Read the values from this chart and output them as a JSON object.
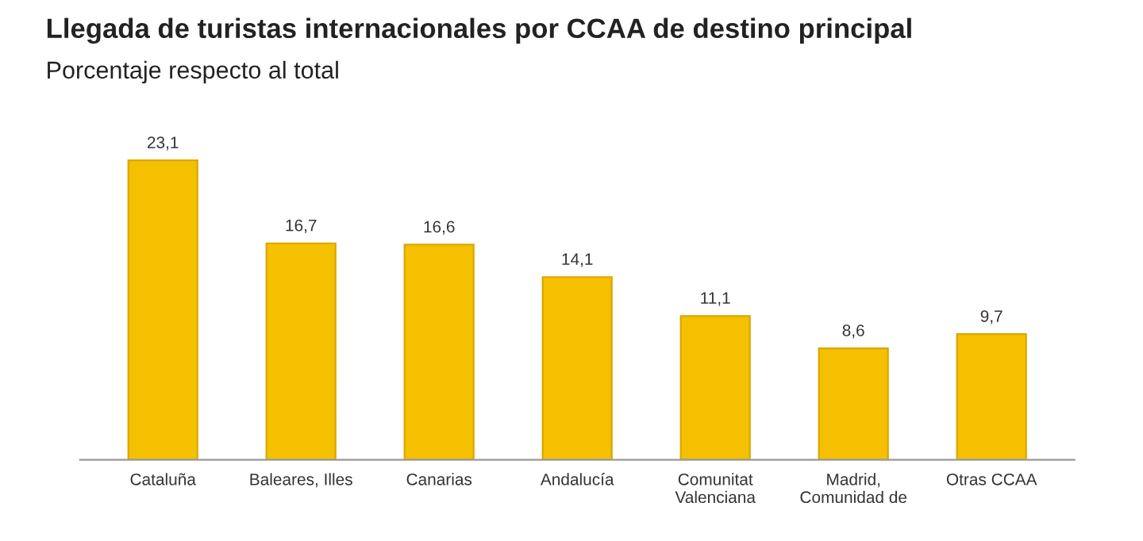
{
  "chart_data": {
    "type": "bar",
    "title": "Llegada de turistas internacionales por CCAA de destino principal",
    "subtitle": "Porcentaje respecto al total",
    "categories": [
      "Cataluña",
      "Baleares, Illes",
      "Canarias",
      "Andalucía",
      "Comunitat\nValenciana",
      "Madrid,\nComunidad de",
      "Otras CCAA"
    ],
    "values": [
      23.1,
      16.7,
      16.6,
      14.1,
      11.1,
      8.6,
      9.7
    ],
    "value_labels": [
      "23,1",
      "16,7",
      "16,6",
      "14,1",
      "11,1",
      "8,6",
      "9,7"
    ],
    "color": "#f5c000",
    "grid": false,
    "tick_labels": "x"
  }
}
